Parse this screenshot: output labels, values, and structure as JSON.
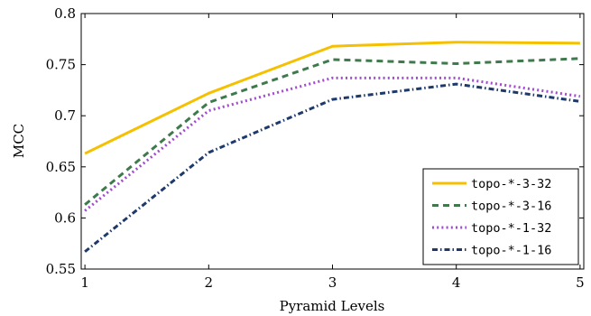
{
  "chart_data": {
    "type": "line",
    "title": "",
    "xlabel": "Pyramid Levels",
    "ylabel": "MCC",
    "x": [
      1,
      2,
      3,
      4,
      5
    ],
    "x_ticks": [
      "1",
      "2",
      "3",
      "4",
      "5"
    ],
    "y_ticks": [
      "0.55",
      "0.6",
      "0.65",
      "0.7",
      "0.75",
      "0.8"
    ],
    "xlim": [
      0.97,
      5.03
    ],
    "ylim": [
      0.55,
      0.8
    ],
    "grid": false,
    "legend_position": "bottom-right",
    "series": [
      {
        "name": "topo-*-3-32",
        "values": [
          0.663,
          0.722,
          0.768,
          0.772,
          0.771
        ],
        "color": "#f5c000",
        "style": "solid"
      },
      {
        "name": "topo-*-3-16",
        "values": [
          0.613,
          0.713,
          0.755,
          0.751,
          0.756
        ],
        "color": "#3f7a4c",
        "style": "dashed"
      },
      {
        "name": "topo-*-1-32",
        "values": [
          0.607,
          0.705,
          0.737,
          0.737,
          0.719
        ],
        "color": "#a24bd0",
        "style": "dotted"
      },
      {
        "name": "topo-*-1-16",
        "values": [
          0.567,
          0.664,
          0.716,
          0.731,
          0.714
        ],
        "color": "#1d3a6b",
        "style": "dashdot"
      }
    ]
  }
}
